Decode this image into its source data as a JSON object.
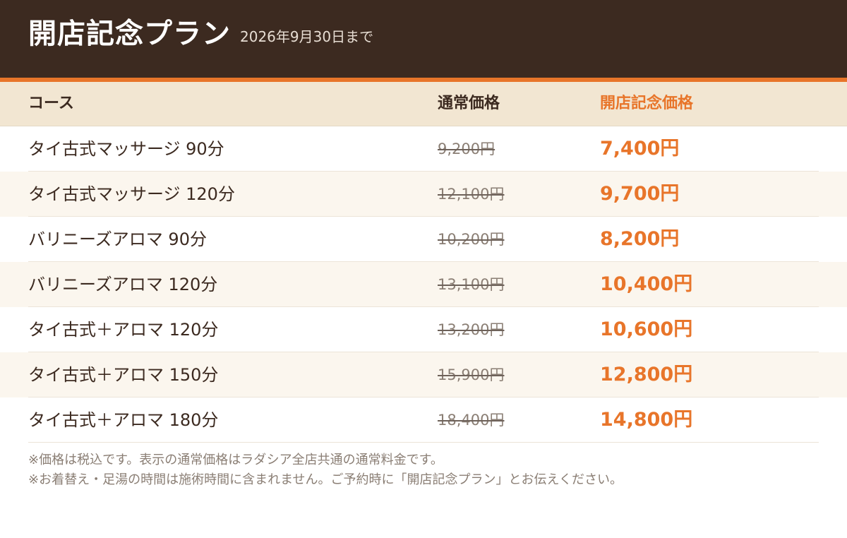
{
  "header": {
    "title": "開店記念プラン",
    "period": "2026年9月30日まで"
  },
  "colors": {
    "header_bg": "#3c2a20",
    "accent": "#e8752a",
    "table_header_bg": "#f2e6d2"
  },
  "table": {
    "headers": {
      "course": "コース",
      "regular": "通常価格",
      "special": "開店記念価格"
    },
    "rows": [
      {
        "course": "タイ古式マッサージ 90分",
        "regular": "9,200円",
        "special": "7,400円"
      },
      {
        "course": "タイ古式マッサージ 120分",
        "regular": "12,100円",
        "special": "9,700円"
      },
      {
        "course": "バリニーズアロマ 90分",
        "regular": "10,200円",
        "special": "8,200円"
      },
      {
        "course": "バリニーズアロマ 120分",
        "regular": "13,100円",
        "special": "10,400円"
      },
      {
        "course": "タイ古式＋アロマ 120分",
        "regular": "13,200円",
        "special": "10,600円"
      },
      {
        "course": "タイ古式＋アロマ 150分",
        "regular": "15,900円",
        "special": "12,800円"
      },
      {
        "course": "タイ古式＋アロマ 180分",
        "regular": "18,400円",
        "special": "14,800円"
      }
    ]
  },
  "notes": [
    "※価格は税込です。表示の通常価格はラダシア全店共通の通常料金です。",
    "※お着替え・足湯の時間は施術時間に含まれません。ご予約時に「開店記念プラン」とお伝えください。"
  ]
}
